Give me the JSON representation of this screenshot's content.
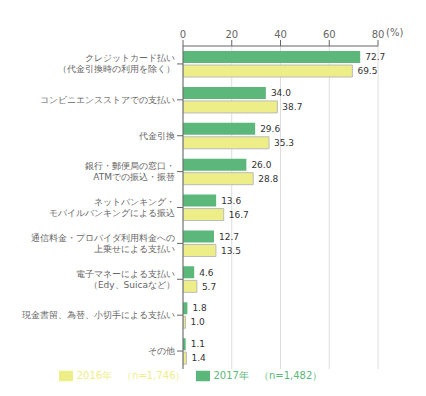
{
  "chart_data": {
    "type": "bar",
    "orientation": "horizontal",
    "categories": [
      "クレジットカード払い\n（代金引換時の利用を除く）",
      "コンビニエンスストアでの支払い",
      "代金引換",
      "銀行・郵便局の窓口・\nATMでの振込・振替",
      "ネットバンキング・\nモバイルバンキングによる振込",
      "通信料金・プロバイダ利用料金への\n上乗せによる支払い",
      "電子マネーによる支払い\n（Edy、Suicaなど）",
      "現金書留、為替、小切手による支払い",
      "その他"
    ],
    "series": [
      {
        "name": "2017年　（n=1,482）",
        "color": "#5cb87a",
        "values": [
          72.7,
          34.0,
          29.6,
          26.0,
          13.6,
          12.7,
          4.6,
          1.8,
          1.1
        ],
        "value_labels": [
          "72.7",
          "34.0",
          "29.6",
          "26.0",
          "13.6",
          "12.7",
          "4.6",
          "1.8",
          "1.1"
        ]
      },
      {
        "name": "2016年　（n=1,746）",
        "color": "#eeee88",
        "values": [
          69.5,
          38.7,
          35.3,
          28.8,
          16.7,
          13.5,
          5.7,
          1.0,
          1.4
        ],
        "value_labels": [
          "69.5",
          "38.7",
          "35.3",
          "28.8",
          "16.7",
          "13.5",
          "5.7",
          "1.0",
          "1.4"
        ]
      }
    ],
    "xlabel": "(%)",
    "xlim": [
      0,
      80
    ],
    "xticks": [
      0,
      20,
      40,
      60,
      80
    ],
    "grid": true,
    "legend": "bottom",
    "data_labels": true
  }
}
